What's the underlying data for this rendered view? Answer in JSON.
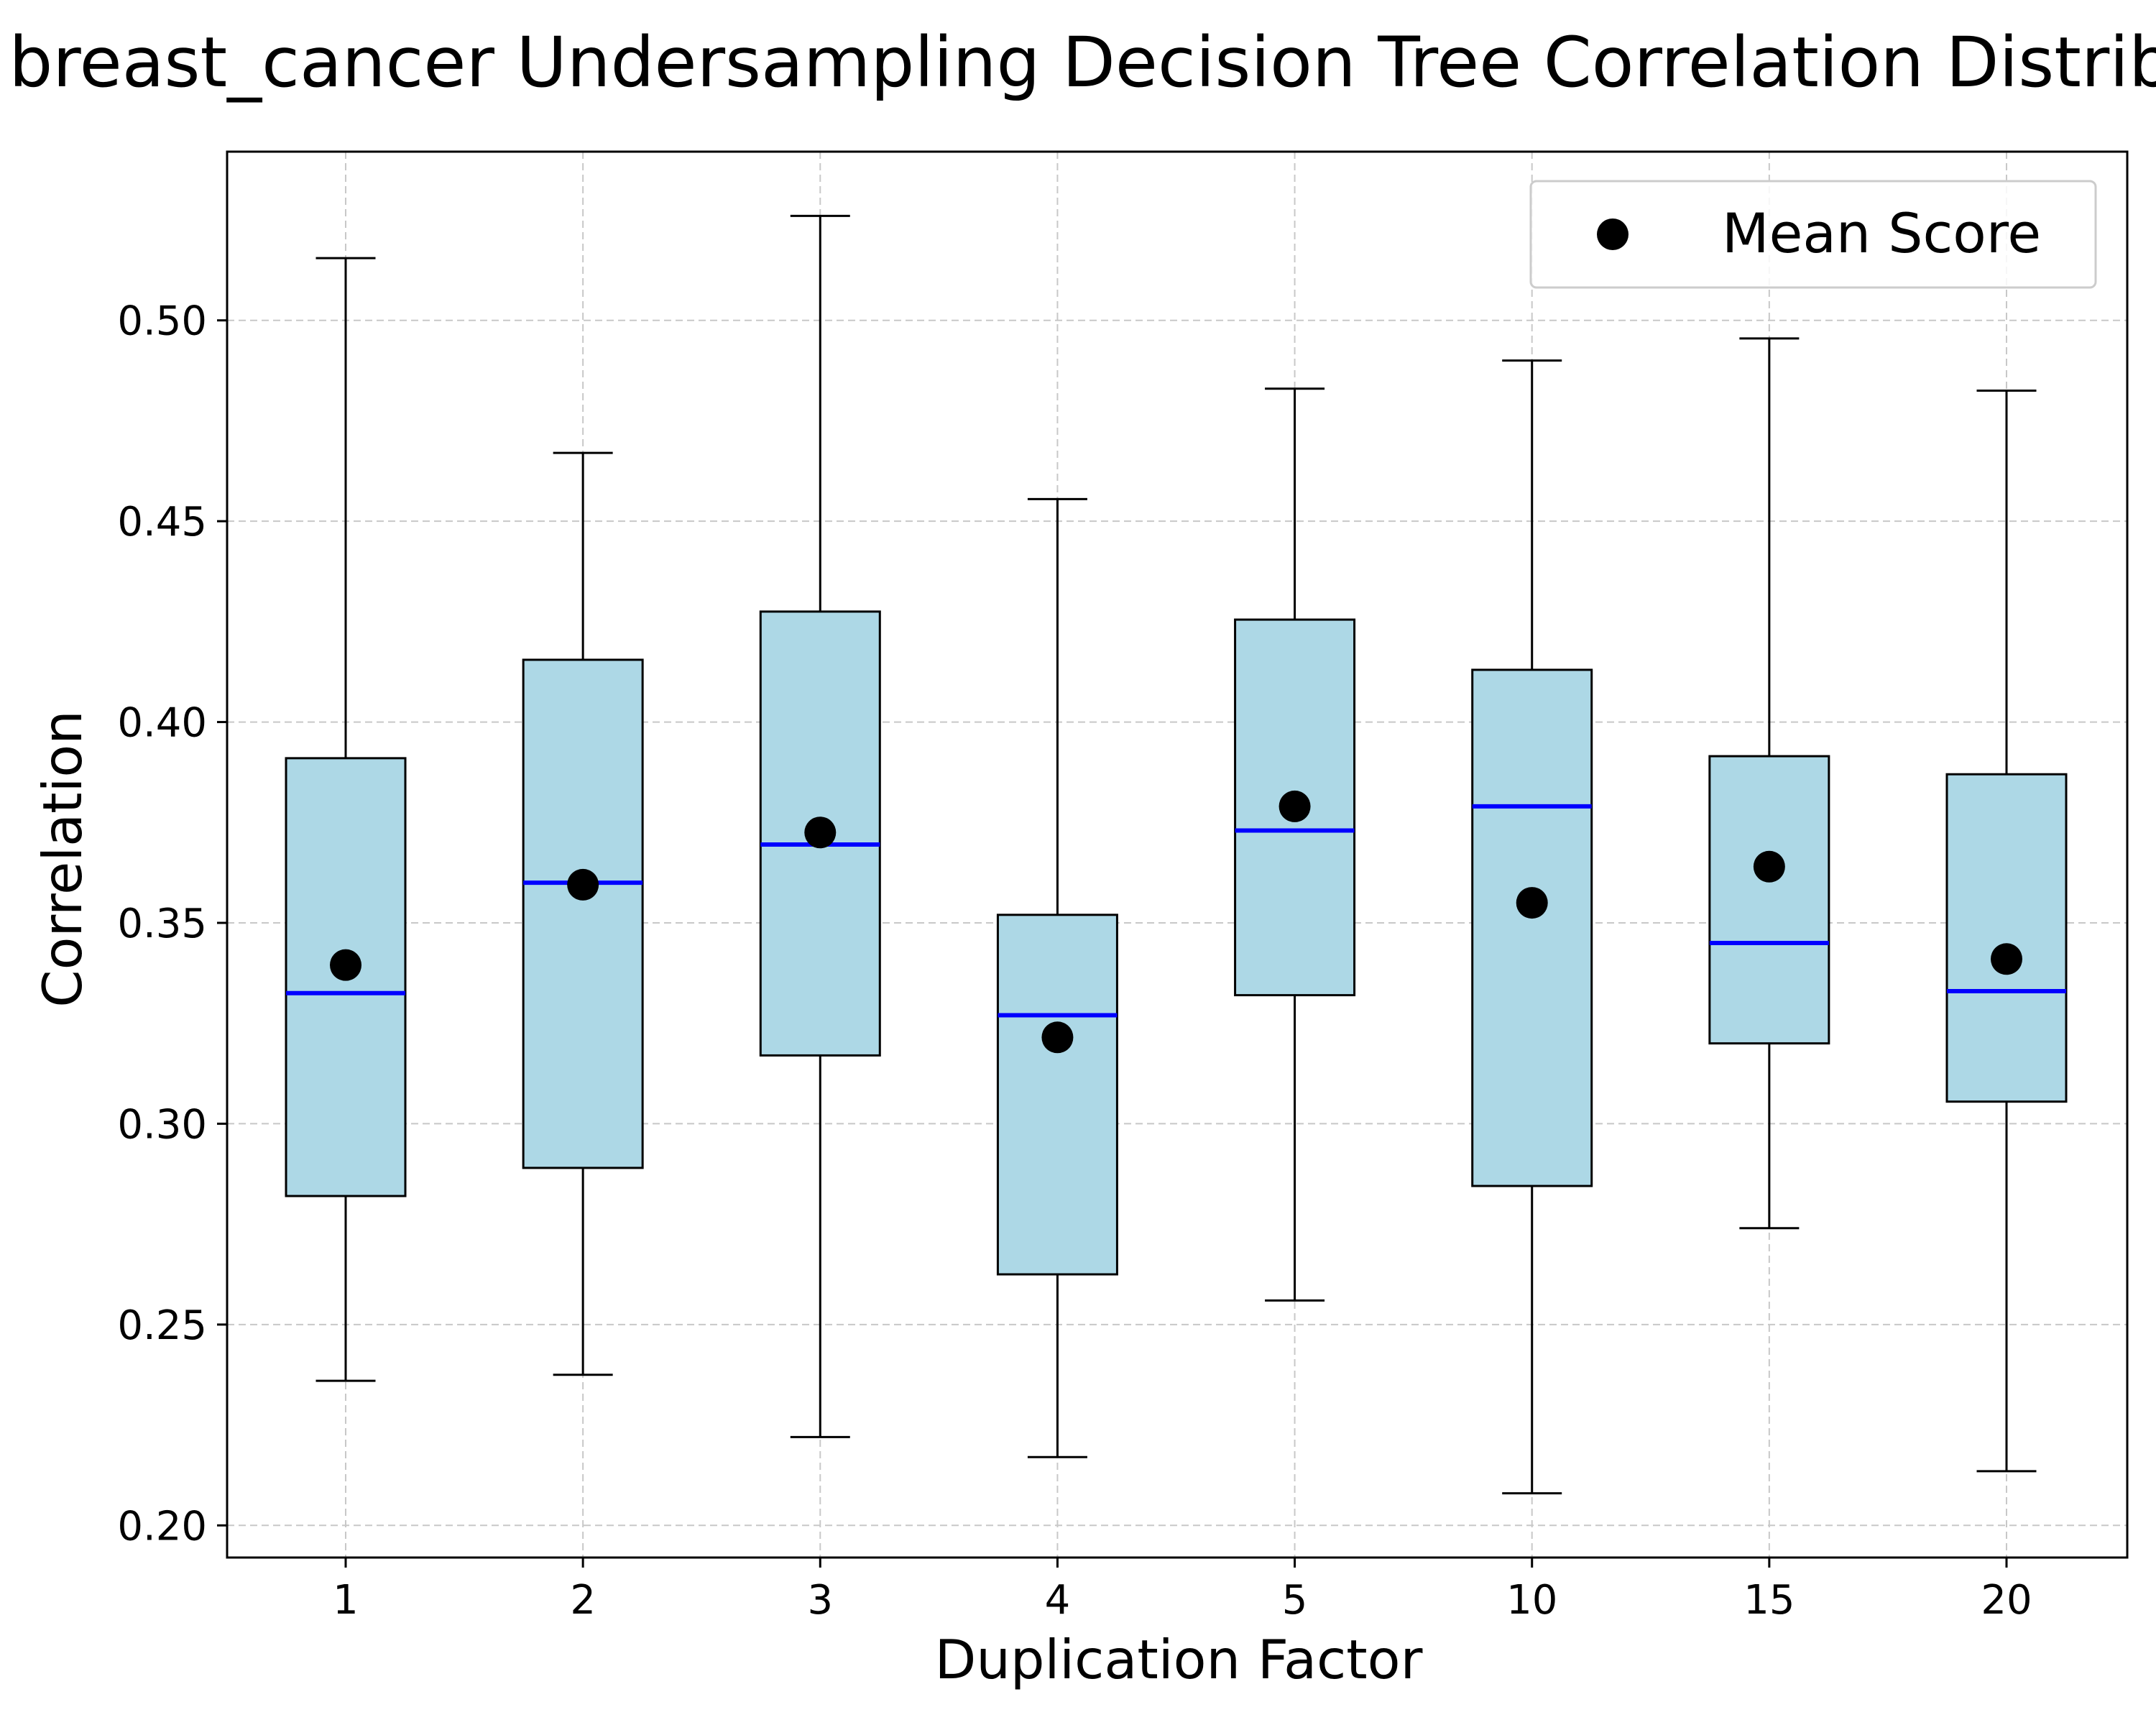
{
  "chart_data": {
    "type": "boxplot",
    "title": "breast_cancer Undersampling Decision Tree Correlation Distribution",
    "xlabel": "Duplication Factor",
    "ylabel": "Correlation",
    "categories": [
      "1",
      "2",
      "3",
      "4",
      "5",
      "10",
      "15",
      "20"
    ],
    "boxes": [
      {
        "category": "1",
        "whisker_low": 0.236,
        "q1": 0.282,
        "median": 0.3325,
        "q3": 0.391,
        "whisker_high": 0.5155,
        "mean": 0.3395
      },
      {
        "category": "2",
        "whisker_low": 0.2375,
        "q1": 0.289,
        "median": 0.36,
        "q3": 0.4155,
        "whisker_high": 0.467,
        "mean": 0.3595
      },
      {
        "category": "3",
        "whisker_low": 0.222,
        "q1": 0.317,
        "median": 0.3695,
        "q3": 0.4275,
        "whisker_high": 0.526,
        "mean": 0.3725
      },
      {
        "category": "4",
        "whisker_low": 0.217,
        "q1": 0.2625,
        "median": 0.327,
        "q3": 0.352,
        "whisker_high": 0.4555,
        "mean": 0.3215
      },
      {
        "category": "5",
        "whisker_low": 0.256,
        "q1": 0.332,
        "median": 0.373,
        "q3": 0.4255,
        "whisker_high": 0.483,
        "mean": 0.379
      },
      {
        "category": "10",
        "whisker_low": 0.208,
        "q1": 0.2845,
        "median": 0.379,
        "q3": 0.413,
        "whisker_high": 0.49,
        "mean": 0.355
      },
      {
        "category": "15",
        "whisker_low": 0.274,
        "q1": 0.32,
        "median": 0.345,
        "q3": 0.3915,
        "whisker_high": 0.4955,
        "mean": 0.364
      },
      {
        "category": "20",
        "whisker_low": 0.2135,
        "q1": 0.3055,
        "median": 0.333,
        "q3": 0.387,
        "whisker_high": 0.4825,
        "mean": 0.341
      }
    ],
    "ylim": [
      0.192,
      0.542
    ],
    "yticks": [
      0.2,
      0.25,
      0.3,
      0.35,
      0.4,
      0.45,
      0.5
    ],
    "ytick_labels": [
      "0.20",
      "0.25",
      "0.30",
      "0.35",
      "0.40",
      "0.45",
      "0.50"
    ],
    "grid": true,
    "legend": {
      "placement": "top-right",
      "entries": [
        {
          "label": "Mean Score",
          "marker": "circle"
        }
      ]
    },
    "colors": {
      "box_fill": "#add8e6",
      "box_edge": "#000000",
      "median": "#0000ff",
      "mean_marker": "#000000",
      "grid": "#c8c8c8"
    }
  }
}
